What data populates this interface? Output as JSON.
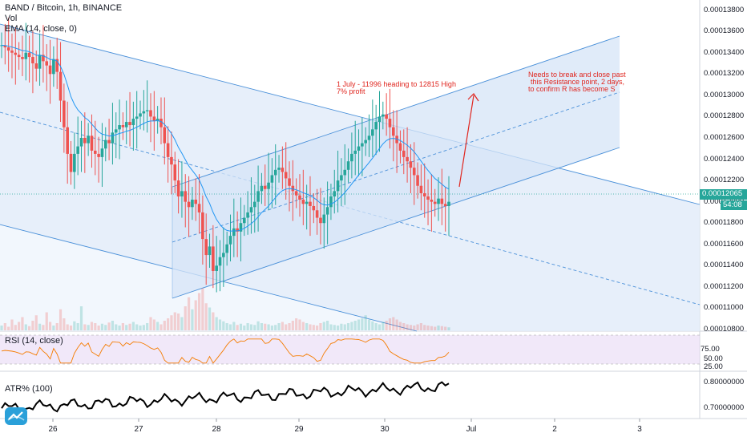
{
  "chart_data": {
    "type": "candlestick",
    "symbol": "BAND / Bitcoin, 1h, BINANCE",
    "indicators_top": [
      "Vol",
      "EMA (14, close, 0)"
    ],
    "x_ticks": [
      "26",
      "27",
      "28",
      "29",
      "30",
      "Jul",
      "2",
      "3"
    ],
    "y_ticks": [
      "0.00013800",
      "0.00013600",
      "0.00013400",
      "0.00013200",
      "0.00013000",
      "0.00012800",
      "0.00012600",
      "0.00012400",
      "0.00012200",
      "0.00012000",
      "0.00011800",
      "0.00011600",
      "0.00011400",
      "0.00011200",
      "0.00011000",
      "0.00010800"
    ],
    "ylim": [
      0.00010785,
      0.00013895
    ],
    "last_price": "0.00012065",
    "countdown": "54:08",
    "annotations": [
      "1 July - 11996 heading to 12815 High",
      "7% profit",
      "Needs to break and close past",
      "this Resistance point, 2 days,",
      "to confirm R has become S"
    ],
    "rsi": {
      "label": "RSI (14, close)",
      "ticks": [
        "75.00",
        "50.00",
        "25.00"
      ],
      "upper": 70,
      "lower": 30
    },
    "atr": {
      "label": "ATR% (100)",
      "ticks": [
        "0.80000000",
        "0.70000000"
      ]
    },
    "colors": {
      "up": "#26a69a",
      "down": "#ef5350",
      "channel": "#4a90d9",
      "ema": "#2196f3",
      "rsi": "#f57c00",
      "annotation": "#e0261f"
    }
  }
}
